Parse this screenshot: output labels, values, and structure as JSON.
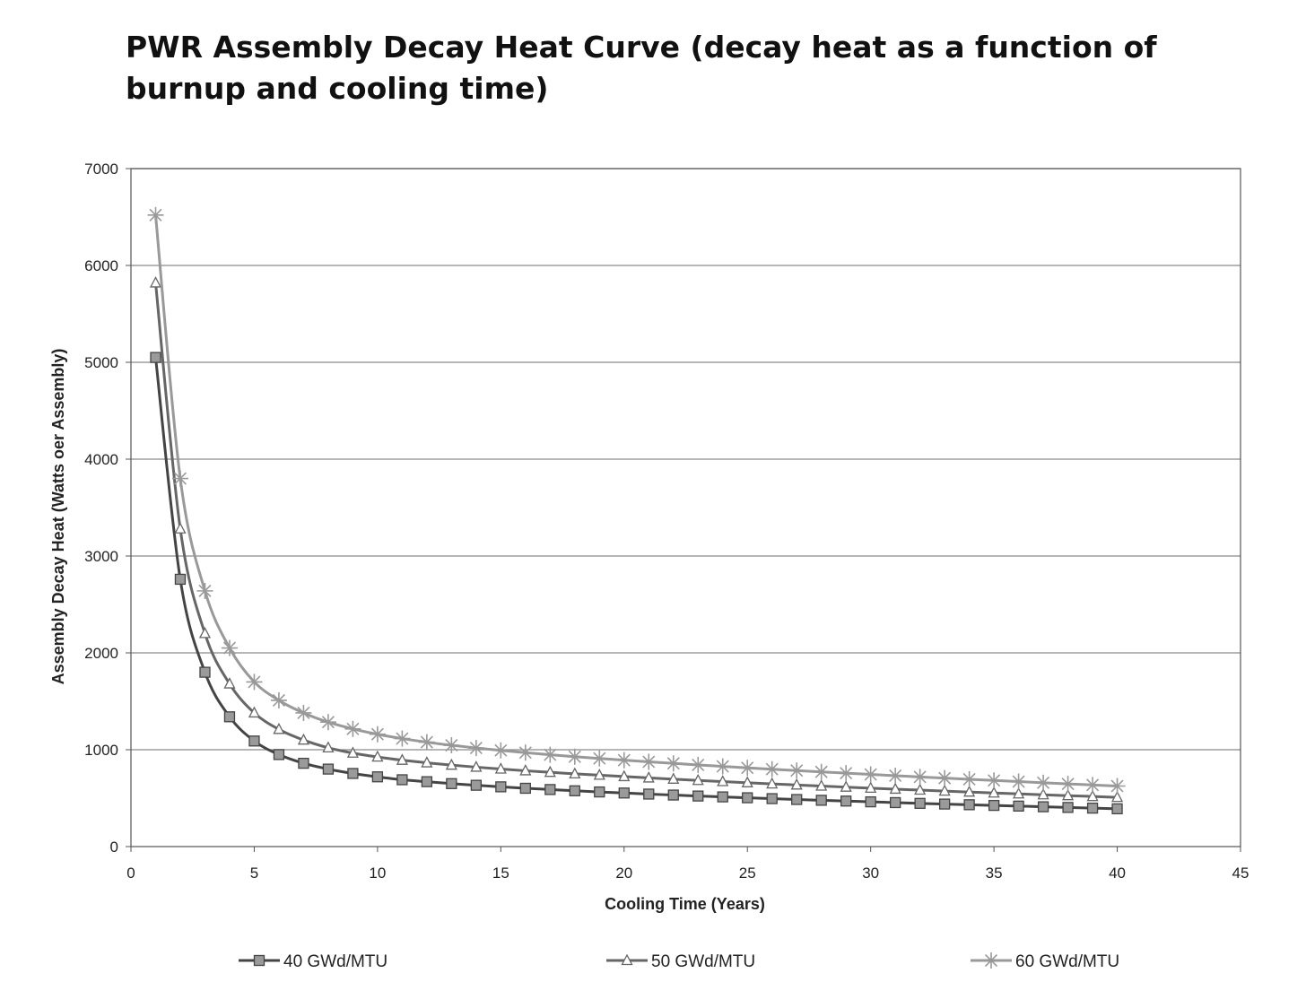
{
  "page_title": "PWR Assembly Decay Heat Curve (decay heat as a function of burnup and cooling time)",
  "chart_data": {
    "type": "line",
    "title": "PWR Assembly Decay Heat Curve (decay heat as a function of burnup and cooling time)",
    "xlabel": "Cooling Time (Years)",
    "ylabel": "Assembly Decay Heat (Watts oer Assembly)",
    "xlim": [
      0,
      45
    ],
    "ylim": [
      0,
      7000
    ],
    "x_ticks": [
      0,
      5,
      10,
      15,
      20,
      25,
      30,
      35,
      40,
      45
    ],
    "y_ticks": [
      0,
      1000,
      2000,
      3000,
      4000,
      5000,
      6000,
      7000
    ],
    "grid": "horizontal",
    "legend_position": "bottom",
    "x": [
      1,
      2,
      3,
      4,
      5,
      6,
      7,
      8,
      9,
      10,
      11,
      12,
      13,
      14,
      15,
      16,
      17,
      18,
      19,
      20,
      21,
      22,
      23,
      24,
      25,
      26,
      27,
      28,
      29,
      30,
      31,
      32,
      33,
      34,
      35,
      36,
      37,
      38,
      39,
      40
    ],
    "series": [
      {
        "name": "40 GWd/MTU",
        "marker": "square",
        "color": "#444444",
        "values": [
          5050,
          2760,
          1800,
          1340,
          1090,
          950,
          860,
          800,
          755,
          720,
          690,
          670,
          650,
          633,
          617,
          602,
          589,
          576,
          564,
          553,
          542,
          532,
          522,
          513,
          504,
          495,
          486,
          478,
          470,
          462,
          454,
          446,
          439,
          432,
          425,
          418,
          411,
          404,
          397,
          390
        ]
      },
      {
        "name": "50 GWd/MTU",
        "marker": "triangle",
        "color": "#666666",
        "values": [
          5820,
          3280,
          2200,
          1680,
          1380,
          1210,
          1100,
          1020,
          965,
          925,
          892,
          865,
          841,
          820,
          801,
          783,
          767,
          751,
          737,
          723,
          709,
          696,
          683,
          671,
          659,
          647,
          636,
          625,
          614,
          603,
          593,
          583,
          573,
          563,
          553,
          544,
          535,
          526,
          517,
          508
        ]
      },
      {
        "name": "60 GWd/MTU",
        "marker": "star",
        "color": "#999999",
        "values": [
          6520,
          3800,
          2640,
          2050,
          1700,
          1510,
          1380,
          1285,
          1215,
          1160,
          1115,
          1078,
          1046,
          1018,
          993,
          970,
          948,
          928,
          910,
          892,
          875,
          859,
          843,
          828,
          813,
          799,
          785,
          771,
          758,
          745,
          732,
          719,
          707,
          695,
          683,
          671,
          659,
          647,
          636,
          625
        ]
      }
    ]
  }
}
